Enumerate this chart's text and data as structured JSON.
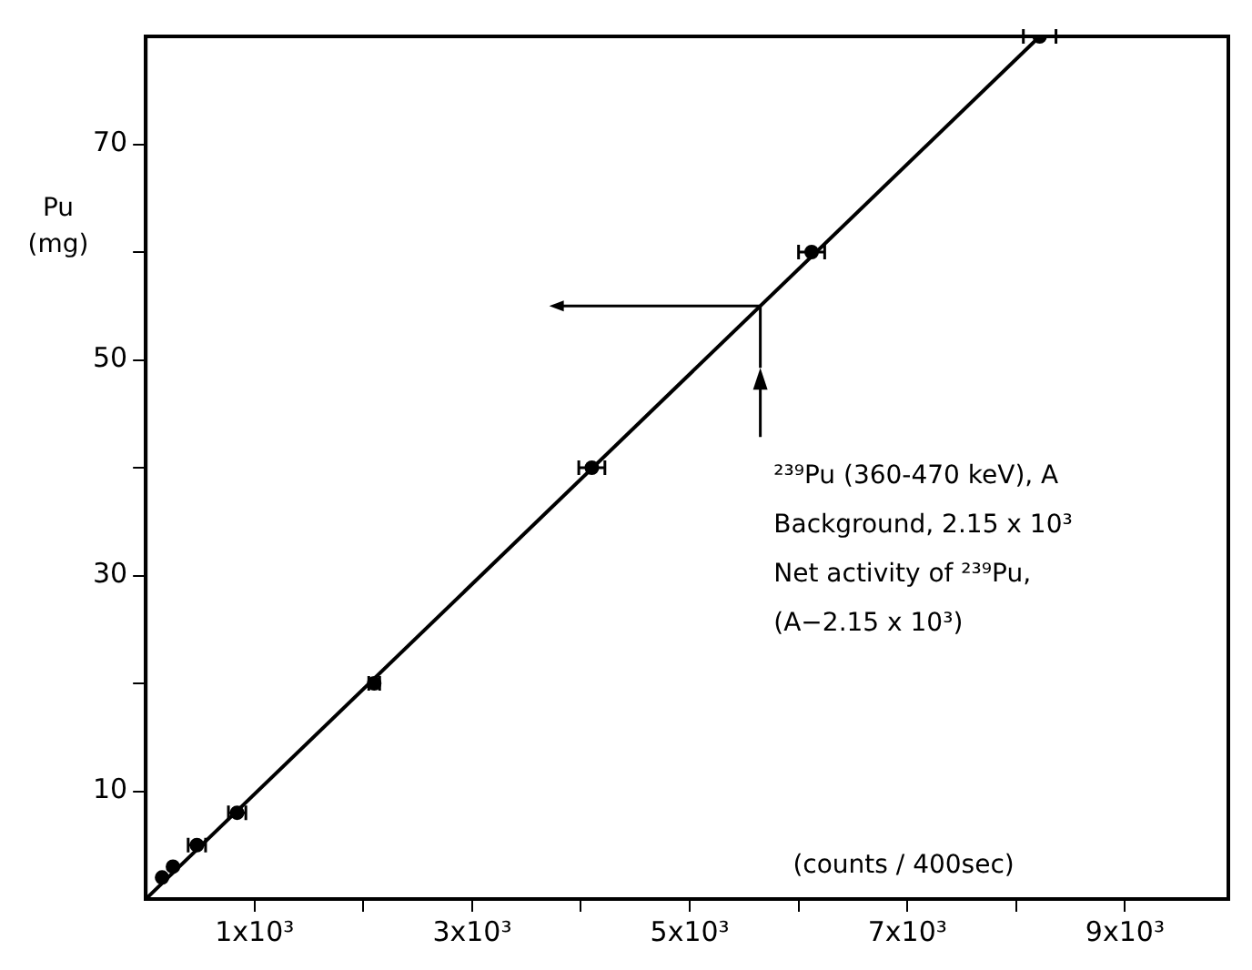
{
  "chart_data": {
    "type": "scatter",
    "xlabel": "(counts / 400sec)",
    "ylabel": "Pu (mg)",
    "xlim": [
      0,
      9950
    ],
    "ylim": [
      0,
      80
    ],
    "xticks": [
      {
        "value": 1000,
        "label": "1x10³"
      },
      {
        "value": 2000,
        "label": null
      },
      {
        "value": 3000,
        "label": "3x10³"
      },
      {
        "value": 4000,
        "label": null
      },
      {
        "value": 5000,
        "label": "5x10³"
      },
      {
        "value": 6000,
        "label": null
      },
      {
        "value": 7000,
        "label": "7x10³"
      },
      {
        "value": 8000,
        "label": null
      },
      {
        "value": 9000,
        "label": "9x10³"
      }
    ],
    "yticks": [
      10,
      {
        "value": 20,
        "label": null
      },
      30,
      {
        "value": 40,
        "label": null
      },
      50,
      {
        "value": 60,
        "label": null
      },
      70
    ],
    "grid": false,
    "legend": false,
    "marker": "circle",
    "series": [
      {
        "color": "#000000",
        "x": [
          150,
          250,
          470,
          840,
          2100,
          4100,
          6120,
          8216
        ],
        "values": [
          2,
          3,
          5,
          8,
          20,
          40,
          60,
          80
        ],
        "xerrors": [
          null,
          null,
          80,
          80,
          50,
          120,
          120,
          150
        ]
      },
      {
        "type": "line",
        "color": "#000000",
        "line_style": "solid",
        "marker": "none",
        "x": [
          0,
          8216
        ],
        "values": [
          0,
          80
        ]
      }
    ],
    "annotations": [
      "²³⁹Pu (360-470 keV), A",
      "Background, 2.15 x 10³",
      "Net activity of ²³⁹Pu,",
      "(A−2.15 x 10³)"
    ]
  }
}
